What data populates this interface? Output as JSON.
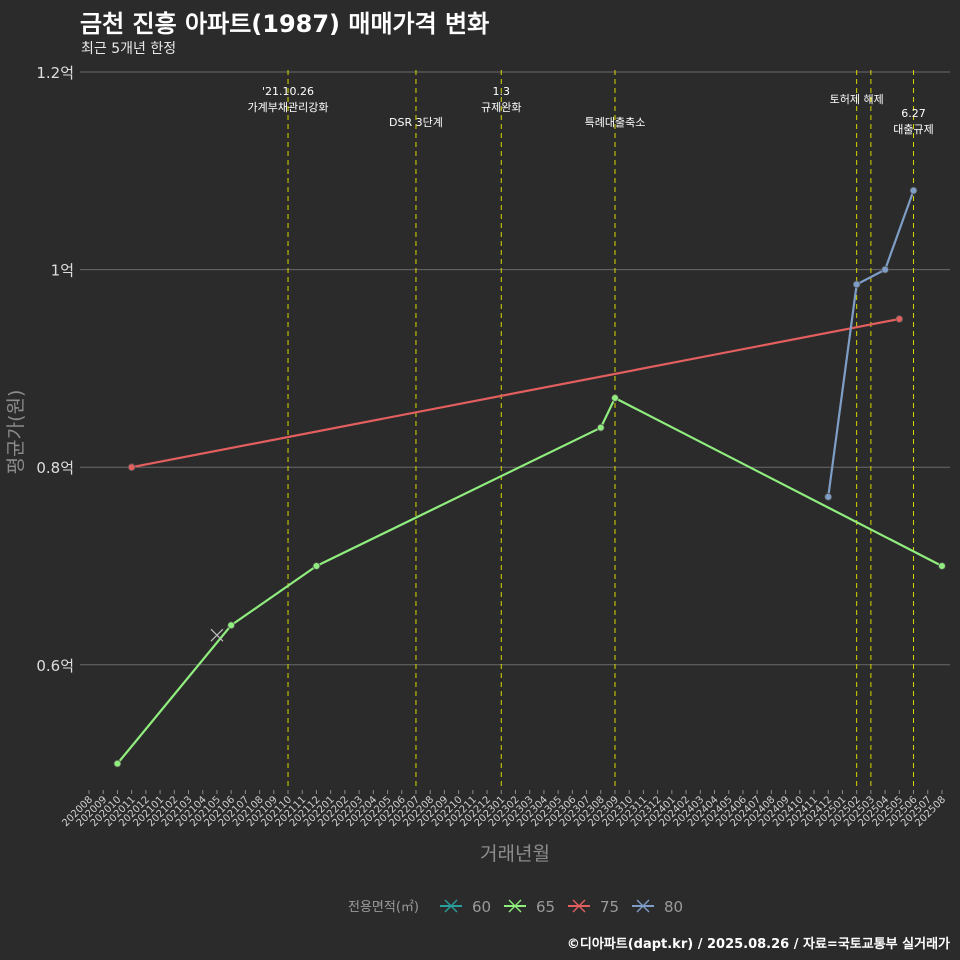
{
  "chart_data": {
    "type": "line",
    "title": "금천 진흥 아파트(1987) 매매가격 변화",
    "subtitle": "최근 5개년 한정",
    "xlabel": "거래년월",
    "ylabel": "평균가(원)",
    "caption": "©디아파트(dapt.kr) / 2025.08.26 / 자료=국토교통부 실거래가",
    "categories": [
      "202008",
      "202009",
      "202010",
      "202011",
      "202012",
      "202101",
      "202102",
      "202103",
      "202104",
      "202105",
      "202106",
      "202107",
      "202108",
      "202109",
      "202110",
      "202111",
      "202112",
      "202201",
      "202202",
      "202203",
      "202204",
      "202205",
      "202206",
      "202207",
      "202208",
      "202209",
      "202210",
      "202211",
      "202212",
      "202301",
      "202302",
      "202303",
      "202304",
      "202305",
      "202306",
      "202307",
      "202308",
      "202309",
      "202310",
      "202311",
      "202312",
      "202401",
      "202402",
      "202403",
      "202404",
      "202405",
      "202406",
      "202407",
      "202408",
      "202409",
      "202410",
      "202411",
      "202412",
      "202501",
      "202502",
      "202503",
      "202504",
      "202505",
      "202506",
      "202507",
      "202508"
    ],
    "ylim": [
      0.475,
      1.2
    ],
    "y_ticks": [
      {
        "value": 0.6,
        "label": "0.6억"
      },
      {
        "value": 0.8,
        "label": "0.8억"
      },
      {
        "value": 1.0,
        "label": "1억"
      },
      {
        "value": 1.2,
        "label": "1.2억"
      }
    ],
    "legend_title": "전용면적(㎡)",
    "series": [
      {
        "name": "60",
        "color": "#2a9d9d",
        "points": []
      },
      {
        "name": "65",
        "color": "#90ee7e",
        "points": [
          {
            "x": "202010",
            "y": 0.5
          },
          {
            "x": "202106",
            "y": 0.64
          },
          {
            "x": "202112",
            "y": 0.7
          },
          {
            "x": "202308",
            "y": 0.84
          },
          {
            "x": "202309",
            "y": 0.87
          },
          {
            "x": "202508",
            "y": 0.7
          }
        ]
      },
      {
        "name": "75",
        "color": "#e35f5f",
        "points": [
          {
            "x": "202011",
            "y": 0.8
          },
          {
            "x": "202505",
            "y": 0.95
          }
        ]
      },
      {
        "name": "80",
        "color": "#7f9ec7",
        "points": [
          {
            "x": "202412",
            "y": 0.77
          },
          {
            "x": "202502",
            "y": 0.985
          },
          {
            "x": "202504",
            "y": 1.0
          },
          {
            "x": "202506",
            "y": 1.08
          }
        ]
      }
    ],
    "cross_markers": [
      {
        "series": "65",
        "x": 9.0,
        "y": 0.63
      }
    ],
    "events": [
      {
        "x": "202110",
        "lines": [
          "'21.10.26",
          "가계부채관리강화"
        ],
        "level": 0
      },
      {
        "x": "202207",
        "lines": [
          "DSR 3단계"
        ],
        "level": 1
      },
      {
        "x": "202301",
        "lines": [
          "1.3",
          "규제완화"
        ],
        "level": 0
      },
      {
        "x": "202309",
        "lines": [
          "특례대출축소"
        ],
        "level": 1
      },
      {
        "x": "202502",
        "lines": [
          "토허제 해제"
        ],
        "level": 0
      },
      {
        "x": "202503",
        "lines": [],
        "level": 0
      },
      {
        "x": "202506",
        "lines": [
          "6.27",
          "대출규제"
        ],
        "level": 1
      }
    ]
  }
}
